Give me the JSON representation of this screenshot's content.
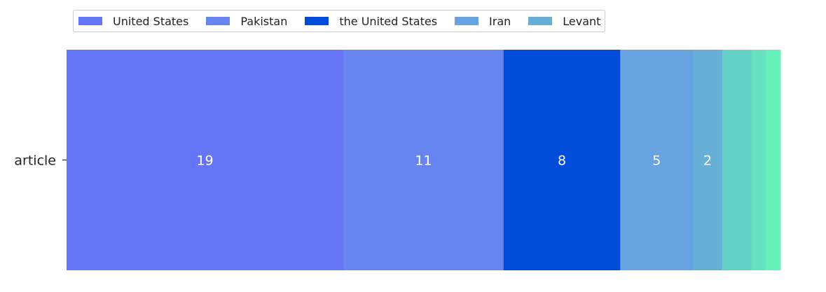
{
  "chart_data": {
    "type": "bar",
    "orientation": "horizontal",
    "stacked": true,
    "categories": [
      "article"
    ],
    "series": [
      {
        "name": "United States",
        "values": [
          19
        ],
        "color": "#6674f6"
      },
      {
        "name": "Pakistan",
        "values": [
          11
        ],
        "color": "#6685ef"
      },
      {
        "name": "the United States",
        "values": [
          8
        ],
        "color": "#004cd8"
      },
      {
        "name": "Iran",
        "values": [
          5
        ],
        "color": "#66a3e0"
      },
      {
        "name": "Levant",
        "values": [
          2
        ],
        "color": "#66b0d8"
      },
      {
        "values": [
          2
        ],
        "color": "#66d1c8"
      },
      {
        "values": [
          1
        ],
        "color": "#66e2c1"
      },
      {
        "values": [
          1
        ],
        "color": "#66f1bb"
      }
    ],
    "data_labels": [
      "19",
      "11",
      "8",
      "5",
      "2",
      "",
      "",
      ""
    ],
    "xlim": [
      0,
      49
    ],
    "grid": false,
    "legend_position": "top-left"
  }
}
